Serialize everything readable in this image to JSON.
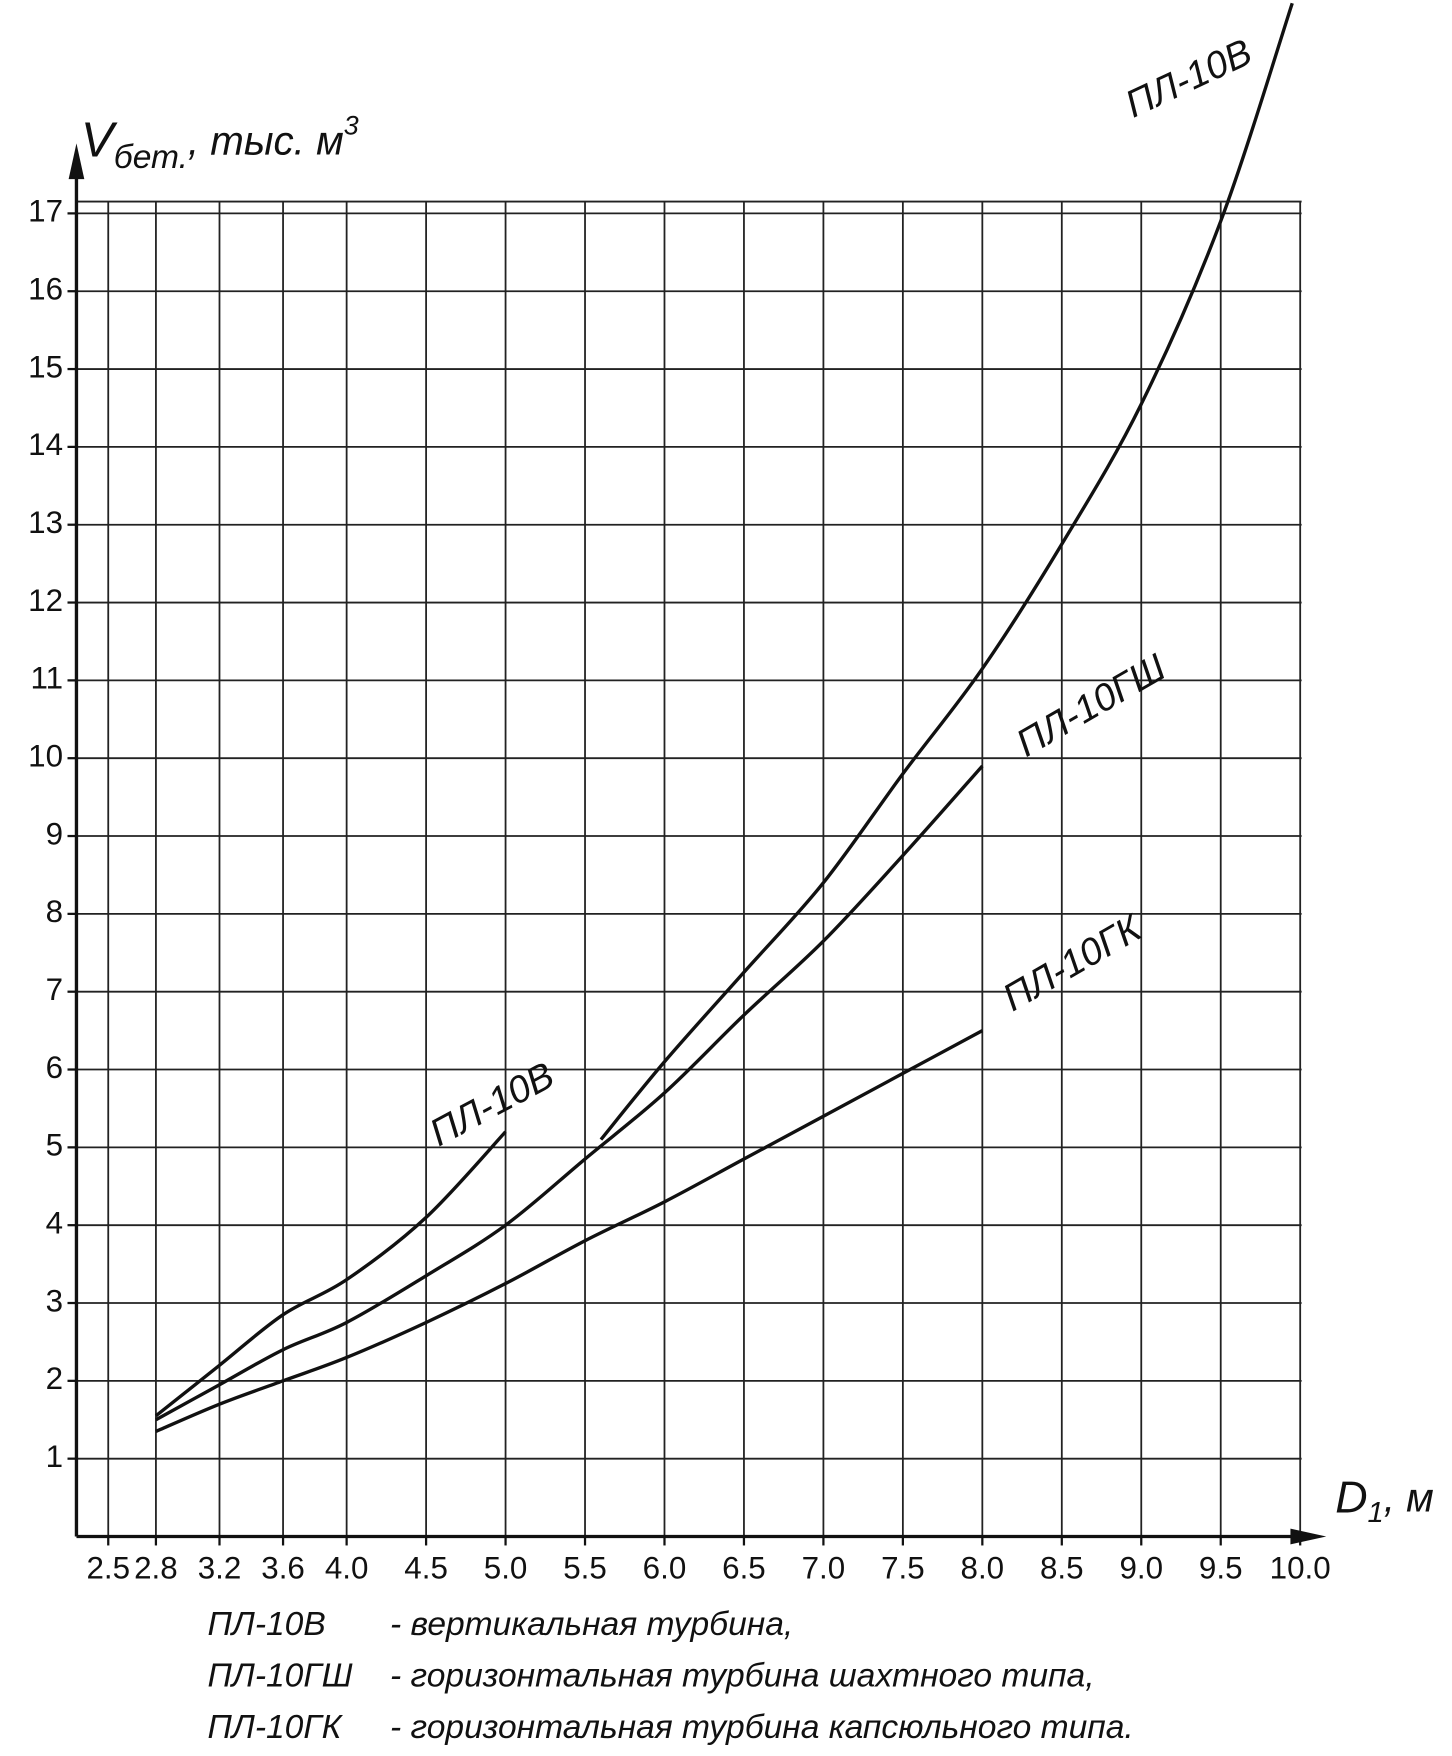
{
  "chart_data": {
    "type": "line",
    "ylabel": {
      "main": "V",
      "sub": "бет.",
      "rest": ", тыс. м",
      "sup": "3"
    },
    "xlabel": {
      "main": "D",
      "sub": "1",
      "rest": ", м"
    },
    "xlim": [
      2.3,
      10.15
    ],
    "ylim": [
      0,
      17.9
    ],
    "xticks": [
      2.5,
      2.8,
      3.2,
      3.6,
      {
        "value": 4,
        "label": "4.0"
      },
      4.5,
      {
        "value": 5,
        "label": "5.0"
      },
      5.5,
      {
        "value": 6,
        "label": "6.0"
      },
      6.5,
      {
        "value": 7,
        "label": "7.0"
      },
      7.5,
      {
        "value": 8,
        "label": "8.0"
      },
      8.5,
      {
        "value": 9,
        "label": "9.0"
      },
      9.5,
      {
        "value": 10,
        "label": "10.0"
      }
    ],
    "yticks": [
      1,
      2,
      3,
      4,
      5,
      6,
      7,
      8,
      9,
      10,
      11,
      12,
      13,
      14,
      15,
      16,
      17
    ],
    "grid": true,
    "color": "#111111",
    "series": [
      {
        "name": "ПЛ-10В",
        "color": "#111111",
        "x": [
          2.8,
          3.2,
          3.6,
          4.0,
          4.5,
          5.0
        ],
        "values": [
          1.55,
          2.2,
          2.85,
          3.3,
          4.1,
          5.2
        ]
      },
      {
        "name": "ПЛ-10В",
        "color": "#111111",
        "x": [
          5.6,
          6.0,
          6.5,
          7.0,
          7.5,
          8.0,
          8.5,
          9.0,
          9.5,
          9.95
        ],
        "values": [
          5.1,
          6.1,
          7.25,
          8.4,
          9.8,
          11.15,
          12.75,
          14.55,
          16.9,
          19.7
        ]
      },
      {
        "name": "ПЛ-10ГШ",
        "color": "#111111",
        "x": [
          2.8,
          3.2,
          3.6,
          4.0,
          4.5,
          5.0,
          5.5,
          6.0,
          6.5,
          7.0,
          7.5,
          8.0
        ],
        "values": [
          1.5,
          1.95,
          2.4,
          2.75,
          3.35,
          4.0,
          4.85,
          5.7,
          6.7,
          7.65,
          8.75,
          9.9
        ]
      },
      {
        "name": "ПЛ-10ГК",
        "color": "#111111",
        "x": [
          2.8,
          3.2,
          3.6,
          4.0,
          4.5,
          5.0,
          5.5,
          6.0,
          6.5,
          7.0,
          7.5,
          8.0
        ],
        "values": [
          1.35,
          1.7,
          2.0,
          2.3,
          2.75,
          3.25,
          3.8,
          4.3,
          4.85,
          5.4,
          5.95,
          6.5
        ]
      }
    ],
    "notes": [
      {
        "code": "ПЛ-10В",
        "text": "- вертикальная турбина,"
      },
      {
        "code": "ПЛ-10ГШ",
        "text": "- горизонтальная турбина шахтного типа,"
      },
      {
        "code": "ПЛ-10ГК",
        "text": "- горизонтальная турбина капсюльного типа."
      }
    ]
  }
}
